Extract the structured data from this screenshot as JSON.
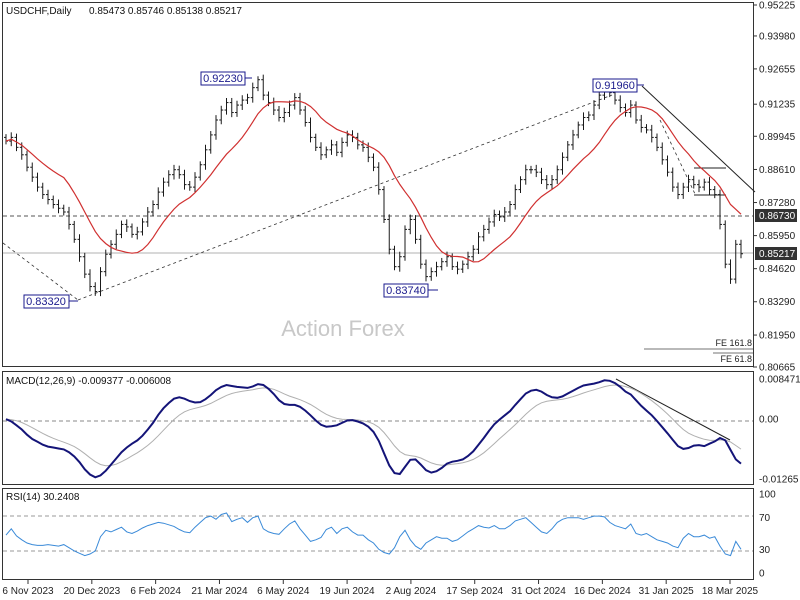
{
  "header": {
    "symbol": "USDCHF,Daily",
    "ohlc": "0.85473 0.85746 0.85138 0.85217"
  },
  "watermark": "Action Forex",
  "colors": {
    "price": "#1a1a1a",
    "ma": "#d03030",
    "macd": "#141478",
    "signal": "#b0b0b0",
    "rsi": "#3a8ad8",
    "label_text": "#1a1a8c",
    "grid": "#9a9a9a",
    "last_price_tag": "#1a1a1a"
  },
  "chart_data": [
    {
      "type": "candlestick",
      "name": "price",
      "ylim": [
        0.80665,
        0.95225
      ],
      "yticks": [
        "0.95225",
        "0.93980",
        "0.92655",
        "0.91235",
        "0.89945",
        "0.88610",
        "0.87280",
        "0.85950",
        "0.84620",
        "0.83290",
        "0.81950",
        "0.80665"
      ],
      "y_tag_labels": [
        "0.86730",
        "0.85217"
      ],
      "x_labels": [
        "6 Nov 2023",
        "20 Dec 2023",
        "6 Feb 2024",
        "21 Mar 2024",
        "6 May 2024",
        "19 Jun 2024",
        "2 Aug 2024",
        "17 Sep 2024",
        "31 Oct 2024",
        "16 Dec 2024",
        "31 Jan 2025",
        "18 Mar 2025"
      ],
      "annotations": [
        "0.92230",
        "0.91960",
        "0.83320",
        "0.83740"
      ],
      "fe_labels": [
        "FE 161.8",
        "FE 61.8"
      ],
      "close": [
        0.8975,
        0.899,
        0.895,
        0.892,
        0.887,
        0.883,
        0.879,
        0.876,
        0.874,
        0.872,
        0.8705,
        0.869,
        0.864,
        0.858,
        0.851,
        0.844,
        0.839,
        0.837,
        0.845,
        0.852,
        0.856,
        0.86,
        0.864,
        0.863,
        0.86,
        0.861,
        0.865,
        0.869,
        0.872,
        0.877,
        0.881,
        0.884,
        0.886,
        0.884,
        0.88,
        0.879,
        0.883,
        0.888,
        0.894,
        0.9,
        0.906,
        0.91,
        0.913,
        0.909,
        0.912,
        0.914,
        0.915,
        0.919,
        0.9222,
        0.916,
        0.913,
        0.91,
        0.907,
        0.909,
        0.912,
        0.915,
        0.91,
        0.905,
        0.899,
        0.895,
        0.892,
        0.894,
        0.896,
        0.893,
        0.897,
        0.9,
        0.899,
        0.896,
        0.895,
        0.891,
        0.887,
        0.878,
        0.866,
        0.854,
        0.847,
        0.851,
        0.862,
        0.866,
        0.858,
        0.848,
        0.843,
        0.845,
        0.847,
        0.849,
        0.851,
        0.847,
        0.846,
        0.848,
        0.851,
        0.854,
        0.859,
        0.862,
        0.865,
        0.868,
        0.867,
        0.869,
        0.872,
        0.878,
        0.882,
        0.886,
        0.886,
        0.885,
        0.882,
        0.88,
        0.882,
        0.886,
        0.891,
        0.896,
        0.9,
        0.904,
        0.907,
        0.908,
        0.912,
        0.916,
        0.9196,
        0.917,
        0.914,
        0.911,
        0.909,
        0.912,
        0.906,
        0.903,
        0.902,
        0.899,
        0.895,
        0.89,
        0.885,
        0.879,
        0.876,
        0.879,
        0.882,
        0.88,
        0.879,
        0.881,
        0.878,
        0.876,
        0.864,
        0.848,
        0.842,
        0.856,
        0.8522
      ]
    },
    {
      "type": "line",
      "name": "MACD(12,26,9)",
      "header_label": "MACD(12,26,9) -0.009377 -0.006008",
      "ylim": [
        -0.01265,
        0.008471
      ],
      "yticks": [
        "0.008471",
        "0.00",
        "-0.01265"
      ],
      "signal_values_from": "macd lagged",
      "macd": [
        0.0,
        -0.0005,
        -0.0013,
        -0.0022,
        -0.0033,
        -0.0042,
        -0.0048,
        -0.0054,
        -0.0058,
        -0.006,
        -0.0062,
        -0.0064,
        -0.007,
        -0.0079,
        -0.0091,
        -0.0106,
        -0.0117,
        -0.0123,
        -0.0119,
        -0.0109,
        -0.0096,
        -0.0083,
        -0.007,
        -0.006,
        -0.0052,
        -0.0045,
        -0.0035,
        -0.0022,
        -0.0008,
        0.0009,
        0.0023,
        0.0034,
        0.0043,
        0.0046,
        0.0043,
        0.0038,
        0.0035,
        0.0036,
        0.0042,
        0.0051,
        0.0061,
        0.0068,
        0.0072,
        0.007,
        0.0068,
        0.0067,
        0.0066,
        0.0069,
        0.0074,
        0.0072,
        0.0064,
        0.0053,
        0.004,
        0.0032,
        0.003,
        0.003,
        0.0026,
        0.0018,
        0.0008,
        -0.0003,
        -0.0012,
        -0.0016,
        -0.0015,
        -0.0013,
        -0.0008,
        -0.0003,
        -0.0002,
        -0.0005,
        -0.0009,
        -0.0016,
        -0.0027,
        -0.0046,
        -0.0072,
        -0.0098,
        -0.0114,
        -0.0116,
        -0.0101,
        -0.0086,
        -0.0085,
        -0.0096,
        -0.0108,
        -0.0113,
        -0.011,
        -0.0103,
        -0.0094,
        -0.009,
        -0.0088,
        -0.0085,
        -0.0078,
        -0.0068,
        -0.0054,
        -0.004,
        -0.0025,
        -0.0011,
        -0.0001,
        0.0008,
        0.0017,
        0.003,
        0.0042,
        0.0054,
        0.006,
        0.0062,
        0.0058,
        0.0051,
        0.0046,
        0.0045,
        0.0048,
        0.0054,
        0.006,
        0.0066,
        0.0071,
        0.0073,
        0.0075,
        0.0078,
        0.0082,
        0.0081,
        0.0076,
        0.0068,
        0.0058,
        0.0052,
        0.004,
        0.0028,
        0.0018,
        0.0008,
        -0.0004,
        -0.0017,
        -0.003,
        -0.0044,
        -0.0057,
        -0.0063,
        -0.0061,
        -0.0056,
        -0.0055,
        -0.0057,
        -0.0052,
        -0.0047,
        -0.004,
        -0.0045,
        -0.0065,
        -0.0085,
        -0.0094
      ]
    },
    {
      "type": "line",
      "name": "RSI(14)",
      "header_label": "RSI(14) 30.2408",
      "ylim": [
        0,
        100
      ],
      "yticks": [
        "100",
        "70",
        "30",
        "0"
      ],
      "guides": [
        70,
        30
      ],
      "values": [
        48,
        56,
        47,
        42,
        38,
        36,
        35,
        35,
        36,
        35,
        34,
        36,
        32,
        28,
        25,
        22,
        24,
        28,
        46,
        54,
        52,
        55,
        58,
        52,
        50,
        53,
        57,
        60,
        62,
        64,
        63,
        61,
        59,
        55,
        52,
        51,
        58,
        64,
        70,
        72,
        68,
        74,
        76,
        65,
        68,
        70,
        64,
        70,
        72,
        56,
        52,
        50,
        49,
        56,
        62,
        66,
        56,
        48,
        40,
        42,
        45,
        55,
        58,
        50,
        56,
        58,
        52,
        48,
        48,
        42,
        38,
        30,
        26,
        24,
        32,
        46,
        54,
        42,
        34,
        30,
        38,
        42,
        46,
        44,
        44,
        40,
        42,
        47,
        52,
        56,
        60,
        58,
        57,
        60,
        56,
        56,
        60,
        66,
        68,
        70,
        64,
        58,
        52,
        50,
        56,
        64,
        68,
        70,
        70,
        70,
        68,
        70,
        72,
        72,
        71,
        64,
        60,
        58,
        56,
        62,
        50,
        48,
        50,
        46,
        42,
        40,
        38,
        34,
        32,
        44,
        50,
        46,
        46,
        48,
        44,
        46,
        34,
        24,
        22,
        40,
        30
      ]
    }
  ]
}
